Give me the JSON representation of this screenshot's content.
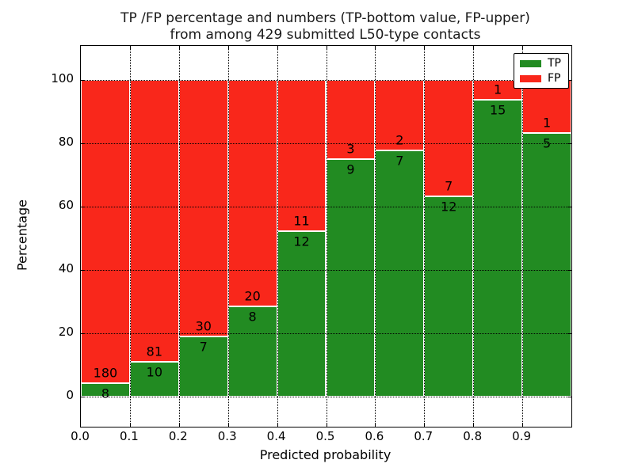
{
  "title": {
    "line1": "TP /FP percentage and numbers (TP-bottom value, FP-upper)",
    "line2": "from among 429 submitted L50-type contacts"
  },
  "axes": {
    "xlabel": "Predicted probability",
    "ylabel": "Percentage",
    "xticklabels": [
      "0.0",
      "0.1",
      "0.2",
      "0.3",
      "0.4",
      "0.5",
      "0.6",
      "0.7",
      "0.8",
      "0.9"
    ],
    "yticklabels": [
      "0",
      "20",
      "40",
      "60",
      "80",
      "100"
    ]
  },
  "legend": {
    "items": [
      {
        "label": "TP",
        "color": "#228B22"
      },
      {
        "label": "FP",
        "color": "#F9271B"
      }
    ]
  },
  "chart_data": {
    "type": "bar",
    "stacked": true,
    "normalized": "percent",
    "title": "TP /FP percentage and numbers (TP-bottom value, FP-upper) from among 429 submitted L50-type contacts",
    "xlabel": "Predicted probability",
    "ylabel": "Percentage",
    "total_contacts": 429,
    "bin_edges": [
      0.0,
      0.1,
      0.2,
      0.3,
      0.4,
      0.5,
      0.6,
      0.7,
      0.8,
      0.9,
      1.0
    ],
    "categories": [
      "0.0",
      "0.1",
      "0.2",
      "0.3",
      "0.4",
      "0.5",
      "0.6",
      "0.7",
      "0.8",
      "0.9"
    ],
    "series": [
      {
        "name": "TP",
        "color": "#228B22",
        "counts": [
          8,
          10,
          7,
          8,
          12,
          9,
          7,
          12,
          15,
          5
        ]
      },
      {
        "name": "FP",
        "color": "#F9271B",
        "counts": [
          180,
          81,
          30,
          20,
          11,
          3,
          2,
          7,
          1,
          1
        ]
      }
    ],
    "tp_percent": [
      4.26,
      10.99,
      18.92,
      28.57,
      52.17,
      75.0,
      77.78,
      63.16,
      93.75,
      83.33
    ],
    "ylim": [
      0,
      100
    ],
    "yticks": [
      0,
      20,
      40,
      60,
      80,
      100
    ],
    "grid": true,
    "legend_position": "upper right",
    "bar_edge_color": "#ffffff"
  }
}
